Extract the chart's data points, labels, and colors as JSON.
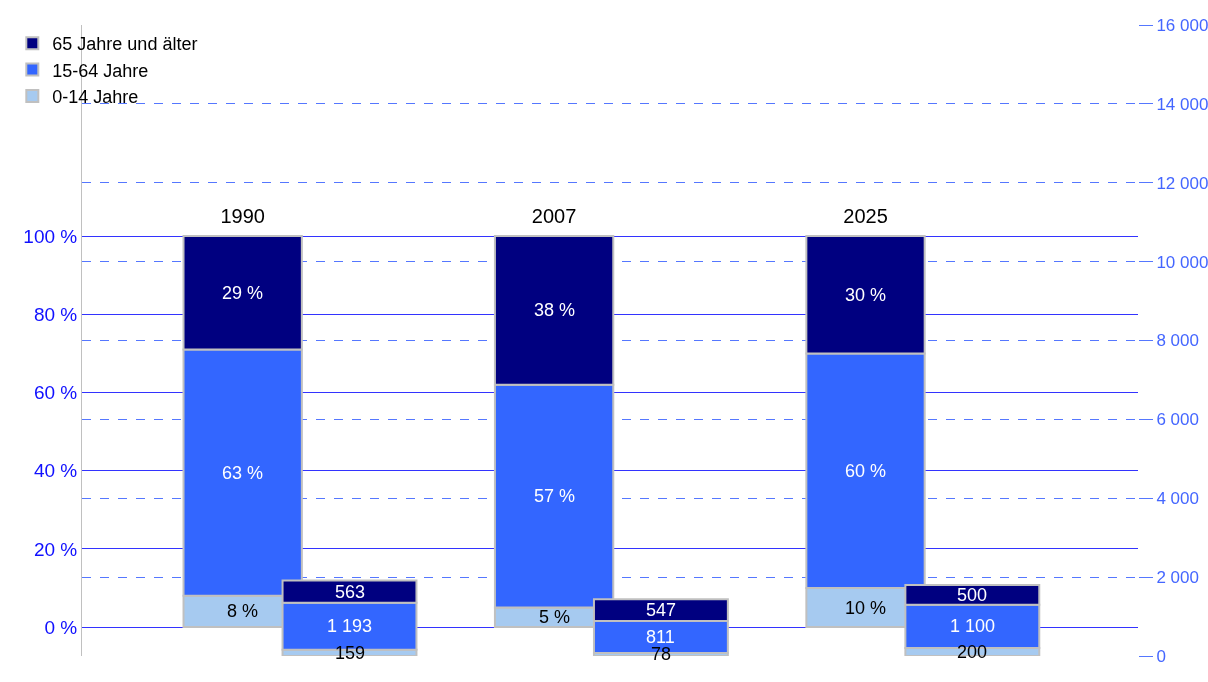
{
  "chart_data": {
    "type": "bar",
    "stacked": true,
    "categories": [
      "1990",
      "2007",
      "2025"
    ],
    "series": [
      {
        "name": "0-14 Jahre",
        "color": "#a6caf0",
        "values": [
          8,
          5,
          10
        ],
        "value_labels": [
          "8 %",
          "5 %",
          "10 %"
        ]
      },
      {
        "name": "15-64 Jahre",
        "color": "#3366ff",
        "values": [
          63,
          57,
          60
        ],
        "value_labels": [
          "63 %",
          "57 %",
          "60 %"
        ]
      },
      {
        "name": "65 Jahre und älter",
        "color": "#000080",
        "values": [
          29,
          38,
          30
        ],
        "value_labels": [
          "29 %",
          "38 %",
          "30 %"
        ]
      },
      {
        "color": "#a6caf0",
        "axis": "y2",
        "values": [
          159,
          78,
          200
        ],
        "value_labels": [
          "159",
          "78",
          "200"
        ]
      },
      {
        "color": "#3366ff",
        "axis": "y2",
        "values": [
          1193,
          811,
          1100
        ],
        "value_labels": [
          "1 193",
          "811",
          "1 100"
        ]
      },
      {
        "color": "#000080",
        "axis": "y2",
        "values": [
          563,
          547,
          500
        ],
        "value_labels": [
          "563",
          "547",
          "500"
        ]
      }
    ],
    "ylim": [
      -7.4,
      154
    ],
    "yticks": [
      {
        "value": 0,
        "label": "0 %"
      },
      {
        "value": 20,
        "label": "20 %"
      },
      {
        "value": 40,
        "label": "40 %"
      },
      {
        "value": 60,
        "label": "60 %"
      },
      {
        "value": 80,
        "label": "80 %"
      },
      {
        "value": 100,
        "label": "100 %"
      }
    ],
    "y2lim": [
      0,
      16000
    ],
    "y2ticks": [
      {
        "value": 0,
        "label": "0"
      },
      {
        "value": 2000,
        "label": "2 000"
      },
      {
        "value": 4000,
        "label": "4 000"
      },
      {
        "value": 6000,
        "label": "6 000"
      },
      {
        "value": 8000,
        "label": "8 000"
      },
      {
        "value": 10000,
        "label": "10 000"
      },
      {
        "value": 12000,
        "label": "12 000"
      },
      {
        "value": 14000,
        "label": "14 000"
      },
      {
        "value": 16000,
        "label": "16 000"
      }
    ],
    "grid": true,
    "legend": "top left"
  }
}
